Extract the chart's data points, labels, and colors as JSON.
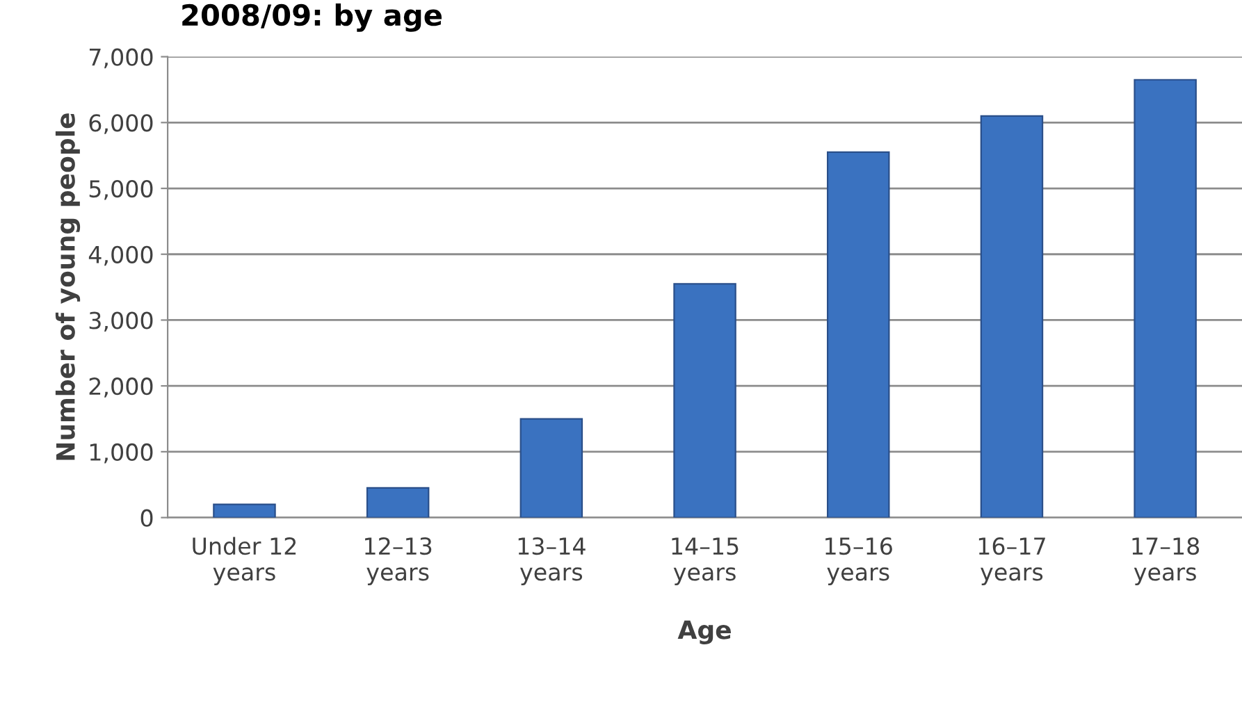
{
  "chart_data": {
    "type": "bar",
    "title": "2008/09: by age",
    "xlabel": "Age",
    "ylabel": "Number of young people",
    "categories": [
      "Under 12\nyears",
      "12–13\nyears",
      "13–14\nyears",
      "14–15\nyears",
      "15–16\nyears",
      "16–17\nyears",
      "17–18\nyears"
    ],
    "values": [
      200,
      450,
      1500,
      3550,
      5550,
      6100,
      6650
    ],
    "color": "#3a72c0",
    "ylim": [
      0,
      7000
    ],
    "yticks": [
      {
        "value": 0,
        "label": "0"
      },
      {
        "value": 1000,
        "label": "1,000"
      },
      {
        "value": 2000,
        "label": "2,000"
      },
      {
        "value": 3000,
        "label": "3,000"
      },
      {
        "value": 4000,
        "label": "4,000"
      },
      {
        "value": 5000,
        "label": "5,000"
      },
      {
        "value": 6000,
        "label": "6,000"
      },
      {
        "value": 7000,
        "label": "7,000"
      }
    ],
    "grid": "y",
    "legend": false
  }
}
